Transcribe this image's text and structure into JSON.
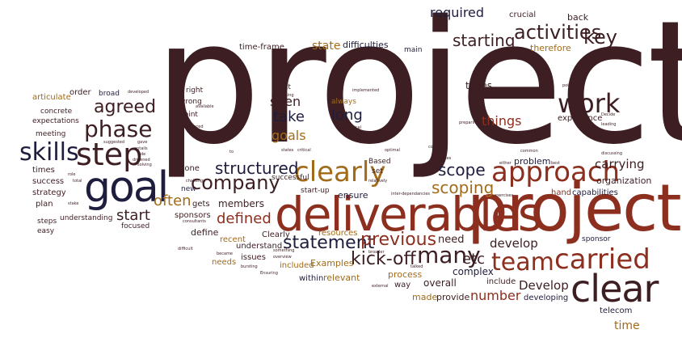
{
  "words": {
    "project": "project",
    "projects": "projects",
    "deliverables": "deliverables",
    "goal": "goal",
    "clear": "clear",
    "step": "step",
    "clearly": "clearly",
    "approach": "approach",
    "company": "company",
    "carried": "carried",
    "work": "work",
    "team": "team",
    "skills": "skills",
    "phase": "phase",
    "structured": "structured",
    "statement": "statement",
    "kick_off": "kick-off",
    "previous": "previous",
    "many": "many",
    "activities": "activities",
    "key": "key",
    "starting": "starting",
    "scoping": "scoping",
    "scope": "scope",
    "agreed": "agreed",
    "start": "start",
    "defined": "defined",
    "often": "often",
    "etc": "etc",
    "things": "things",
    "goals": "goals",
    "long": "long",
    "take": "take",
    "seen": "seen",
    "required": "required",
    "number": "number",
    "develop": "develop",
    "Develop": "Develop",
    "time": "time",
    "carrying": "carrying",
    "state": "state",
    "difficulties": "difficulties",
    "time_frame": "time-frame",
    "crucial": "crucial",
    "back": "back",
    "therefore": "therefore",
    "main": "main",
    "types": "types",
    "experience": "experience",
    "problem": "problem",
    "organization": "organization",
    "capabilities": "capabilities",
    "hand": "hand",
    "need": "need",
    "sponsor": "sponsor",
    "include": "include",
    "developing": "developing",
    "telecom": "telecom",
    "complex": "complex",
    "overall": "overall",
    "provide": "provide",
    "made": "made",
    "way": "way",
    "process": "process",
    "relevant": "relevant",
    "Examples": "Examples",
    "included": "included",
    "within": "within",
    "needs": "needs",
    "issues": "issues",
    "understand": "understand",
    "recent": "recent",
    "Clearly": "Clearly",
    "resources": "resources",
    "ensure": "ensure",
    "members": "members",
    "gets": "gets",
    "sponsors": "sponsors",
    "define": "define",
    "new": "new",
    "gone": "gone",
    "point": "point",
    "wrong": "wrong",
    "right": "right",
    "next": "next",
    "always": "always",
    "successful": "successful",
    "start_up": "start-up",
    "Based": "Based",
    "set": "set",
    "articulate": "articulate",
    "order": "order",
    "broad": "broad",
    "concrete": "concrete",
    "expectations": "expectations",
    "meeting": "meeting",
    "times": "times",
    "success": "success",
    "strategy": "strategy",
    "plan": "plan",
    "steps": "steps",
    "easy": "easy",
    "understanding": "understanding",
    "focused": "focused",
    "developed": "developed",
    "implemented": "implemented",
    "positioning": "positioning",
    "available": "available",
    "produced": "produced",
    "turn": "turn",
    "Technical": "Technical",
    "preparing": "preparing",
    "tangents": "tangents",
    "points": "points",
    "Decide": "Decide",
    "leading": "leading",
    "give": "give",
    "common": "common",
    "best": "best",
    "discussing": "discussing",
    "either": "either",
    "mistakes": "mistakes",
    "come": "come",
    "optimal": "optimal",
    "relatively": "relatively",
    "inter_dependancies": "inter-dependancies",
    "exercises": "exercises",
    "states": "states",
    "critical": "critical",
    "challenge": "challenge",
    "consultants": "consultants",
    "stake": "stake",
    "role": "role",
    "total": "total",
    "suggested": "suggested",
    "gave": "gave",
    "entails": "entails",
    "side": "side",
    "drowned": "drowned",
    "solving": "solving",
    "to": "to",
    "difficult": "difficult",
    "became": "became",
    "something": "something",
    "overview": "overview",
    "bursting": "bursting",
    "Ensuring": "Ensuring",
    "broader": "broader",
    "talked": "talked",
    "external": "external"
  }
}
